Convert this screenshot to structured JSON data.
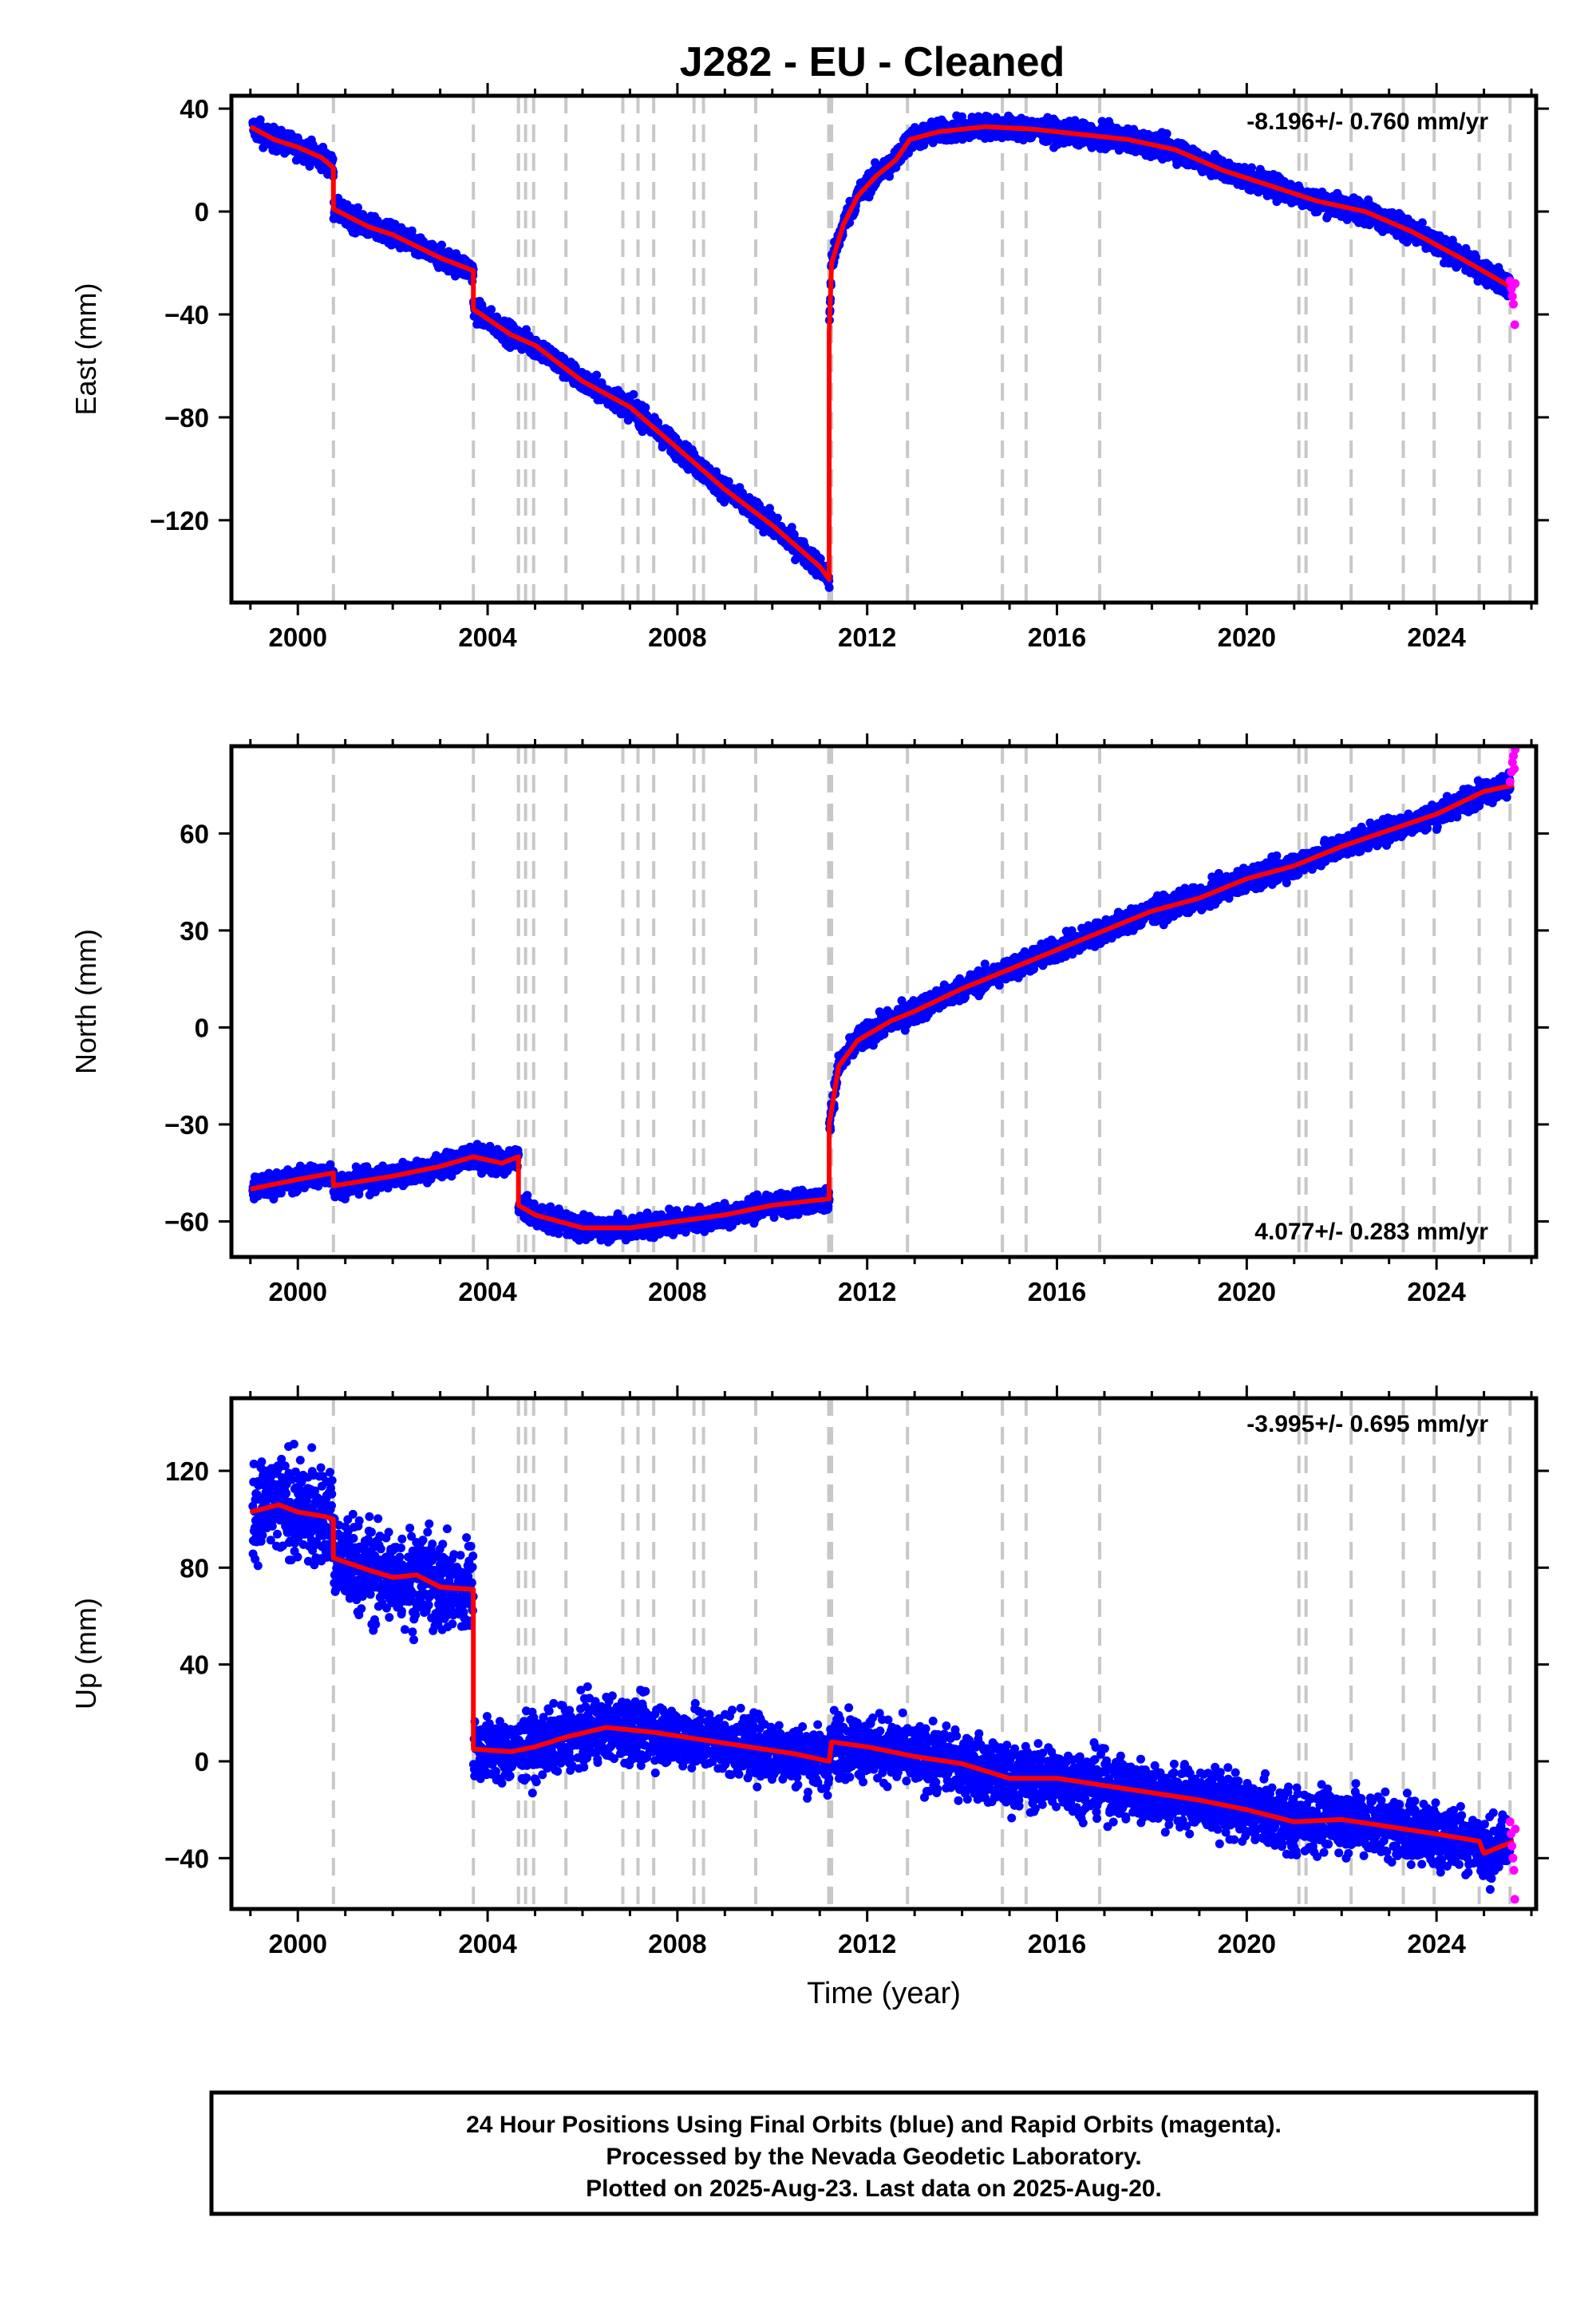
{
  "title": "J282  - EU - Cleaned",
  "footer": {
    "line1": "24 Hour Positions Using Final Orbits (blue) and Rapid Orbits (magenta).",
    "line2": "Processed by the Nevada Geodetic Laboratory.",
    "line3": "Plotted on 2025-Aug-23. Last data on 2025-Aug-20."
  },
  "colors": {
    "final": "#0000ff",
    "rapid": "#ff00ff",
    "model": "#ff0000",
    "steps": "#c8c8c8"
  },
  "chart_data": [
    {
      "type": "scatter",
      "name": "east",
      "ylabel": "East (mm)",
      "xlabel": "",
      "rate": "-8.196+/- 0.760 mm/yr",
      "rate_pos": "top-right",
      "xlim": [
        1998.6,
        2026.1
      ],
      "ylim": [
        -152,
        45
      ],
      "xticks": [
        2000,
        2004,
        2008,
        2012,
        2016,
        2020,
        2024
      ],
      "yticks": [
        40,
        0,
        -40,
        -80,
        -120
      ],
      "ytick_labels": [
        "40",
        "0",
        "−40",
        "−80",
        "−120"
      ],
      "steps": [
        2000.75,
        2003.7,
        2004.65,
        2004.8,
        2004.97,
        2005.65,
        2006.85,
        2007.17,
        2007.5,
        2008.35,
        2008.55,
        2009.65,
        2011.19,
        2011.25,
        2012.85,
        2014.85,
        2015.35,
        2016.9,
        2021.1,
        2021.25,
        2022.2,
        2023.3,
        2023.95,
        2024.9,
        2025.55
      ],
      "noise": 3,
      "model": [
        [
          1999.0,
          33
        ],
        [
          1999.5,
          28
        ],
        [
          2000.0,
          25
        ],
        [
          2000.5,
          21
        ],
        [
          2000.75,
          17
        ],
        [
          2000.75,
          1
        ],
        [
          2001.5,
          -6
        ],
        [
          2002.0,
          -9
        ],
        [
          2003.0,
          -18
        ],
        [
          2003.7,
          -23
        ],
        [
          2003.7,
          -38
        ],
        [
          2004.5,
          -48
        ],
        [
          2005.0,
          -52
        ],
        [
          2006.0,
          -66
        ],
        [
          2007.0,
          -76
        ],
        [
          2008.0,
          -92
        ],
        [
          2009.0,
          -108
        ],
        [
          2010.0,
          -122
        ],
        [
          2011.0,
          -138
        ],
        [
          2011.2,
          -143
        ],
        [
          2011.2,
          -47
        ],
        [
          2011.25,
          -20
        ],
        [
          2011.5,
          -5
        ],
        [
          2011.8,
          6
        ],
        [
          2012.2,
          14
        ],
        [
          2012.6,
          20
        ],
        [
          2012.9,
          28
        ],
        [
          2013.5,
          31
        ],
        [
          2014.5,
          33
        ],
        [
          2015.5,
          32
        ],
        [
          2016.5,
          30
        ],
        [
          2017.5,
          28
        ],
        [
          2018.5,
          24
        ],
        [
          2019.5,
          16
        ],
        [
          2020.5,
          10
        ],
        [
          2021.5,
          4
        ],
        [
          2022.5,
          0
        ],
        [
          2023.5,
          -8
        ],
        [
          2024.5,
          -18
        ],
        [
          2025.63,
          -30
        ]
      ],
      "rapid": [
        [
          2025.55,
          -27
        ],
        [
          2025.58,
          -30
        ],
        [
          2025.6,
          -33
        ],
        [
          2025.62,
          -36
        ],
        [
          2025.65,
          -44
        ],
        [
          2025.66,
          -28
        ]
      ]
    },
    {
      "type": "scatter",
      "name": "north",
      "ylabel": "North (mm)",
      "xlabel": "",
      "rate": "4.077+/- 0.283 mm/yr",
      "rate_pos": "bottom-right",
      "xlim": [
        1998.6,
        2026.1
      ],
      "ylim": [
        -71,
        87
      ],
      "xticks": [
        2000,
        2004,
        2008,
        2012,
        2016,
        2020,
        2024
      ],
      "yticks": [
        60,
        30,
        0,
        -30,
        -60
      ],
      "ytick_labels": [
        "60",
        "30",
        "0",
        "−30",
        "−60"
      ],
      "steps": [
        2000.75,
        2003.7,
        2004.65,
        2004.8,
        2004.97,
        2005.65,
        2006.85,
        2007.17,
        2007.5,
        2008.35,
        2008.55,
        2009.65,
        2011.19,
        2011.25,
        2012.85,
        2014.85,
        2015.35,
        2016.9,
        2021.1,
        2021.25,
        2022.2,
        2023.3,
        2023.95,
        2024.9,
        2025.55
      ],
      "noise": 2.5,
      "model": [
        [
          1999.0,
          -50
        ],
        [
          2000.0,
          -47
        ],
        [
          2000.75,
          -45
        ],
        [
          2000.75,
          -49
        ],
        [
          2002.0,
          -46
        ],
        [
          2003.0,
          -43
        ],
        [
          2003.7,
          -40
        ],
        [
          2004.3,
          -42
        ],
        [
          2004.65,
          -40
        ],
        [
          2004.65,
          -55
        ],
        [
          2005.0,
          -58
        ],
        [
          2006.0,
          -62
        ],
        [
          2007.0,
          -62
        ],
        [
          2008.0,
          -60
        ],
        [
          2009.0,
          -58
        ],
        [
          2010.0,
          -55
        ],
        [
          2011.2,
          -53
        ],
        [
          2011.2,
          -30
        ],
        [
          2011.4,
          -12
        ],
        [
          2011.8,
          -4
        ],
        [
          2012.5,
          2
        ],
        [
          2013.0,
          5
        ],
        [
          2014.0,
          12
        ],
        [
          2015.0,
          18
        ],
        [
          2016.0,
          24
        ],
        [
          2017.0,
          30
        ],
        [
          2018.0,
          36
        ],
        [
          2019.0,
          40
        ],
        [
          2020.0,
          46
        ],
        [
          2021.0,
          50
        ],
        [
          2022.0,
          56
        ],
        [
          2023.0,
          61
        ],
        [
          2024.0,
          66
        ],
        [
          2025.0,
          73
        ],
        [
          2025.63,
          75
        ]
      ],
      "rapid": [
        [
          2025.55,
          76
        ],
        [
          2025.58,
          79
        ],
        [
          2025.6,
          82
        ],
        [
          2025.62,
          84
        ],
        [
          2025.64,
          80
        ],
        [
          2025.66,
          86
        ]
      ]
    },
    {
      "type": "scatter",
      "name": "up",
      "ylabel": "Up (mm)",
      "xlabel": "Time (year)",
      "rate": "-3.995+/- 0.695 mm/yr",
      "rate_pos": "top-right",
      "xlim": [
        1998.6,
        2026.1
      ],
      "ylim": [
        -61,
        150
      ],
      "xticks": [
        2000,
        2004,
        2008,
        2012,
        2016,
        2020,
        2024
      ],
      "yticks": [
        120,
        80,
        40,
        0,
        -40
      ],
      "ytick_labels": [
        "120",
        "80",
        "40",
        "0",
        "−40"
      ],
      "steps": [
        2000.75,
        2003.7,
        2004.65,
        2004.8,
        2004.97,
        2005.65,
        2006.85,
        2007.17,
        2007.5,
        2008.35,
        2008.55,
        2009.65,
        2011.19,
        2011.25,
        2012.85,
        2014.85,
        2015.35,
        2016.9,
        2021.1,
        2021.25,
        2022.2,
        2023.3,
        2023.95,
        2024.9,
        2025.55
      ],
      "noise": 9,
      "model": [
        [
          1999.0,
          103
        ],
        [
          1999.6,
          106
        ],
        [
          2000.0,
          103
        ],
        [
          2000.6,
          101
        ],
        [
          2000.75,
          100
        ],
        [
          2000.75,
          84
        ],
        [
          2001.5,
          79
        ],
        [
          2002.0,
          76
        ],
        [
          2002.5,
          77
        ],
        [
          2003.0,
          72
        ],
        [
          2003.7,
          71
        ],
        [
          2003.7,
          5
        ],
        [
          2004.5,
          4
        ],
        [
          2005.0,
          6
        ],
        [
          2005.65,
          10
        ],
        [
          2006.5,
          14
        ],
        [
          2007.5,
          12
        ],
        [
          2008.5,
          9
        ],
        [
          2009.5,
          6
        ],
        [
          2010.5,
          3
        ],
        [
          2011.2,
          0
        ],
        [
          2011.25,
          8
        ],
        [
          2012.0,
          6
        ],
        [
          2013.0,
          2
        ],
        [
          2014.0,
          -1
        ],
        [
          2015.0,
          -7
        ],
        [
          2016.0,
          -7
        ],
        [
          2017.0,
          -10
        ],
        [
          2018.0,
          -13
        ],
        [
          2019.0,
          -16
        ],
        [
          2020.0,
          -20
        ],
        [
          2021.0,
          -25
        ],
        [
          2022.0,
          -24
        ],
        [
          2023.0,
          -27
        ],
        [
          2024.0,
          -30
        ],
        [
          2024.9,
          -33
        ],
        [
          2025.0,
          -38
        ],
        [
          2025.63,
          -33
        ]
      ],
      "rapid": [
        [
          2025.55,
          -25
        ],
        [
          2025.57,
          -30
        ],
        [
          2025.59,
          -35
        ],
        [
          2025.61,
          -40
        ],
        [
          2025.63,
          -45
        ],
        [
          2025.65,
          -57
        ],
        [
          2025.66,
          -28
        ]
      ]
    }
  ]
}
